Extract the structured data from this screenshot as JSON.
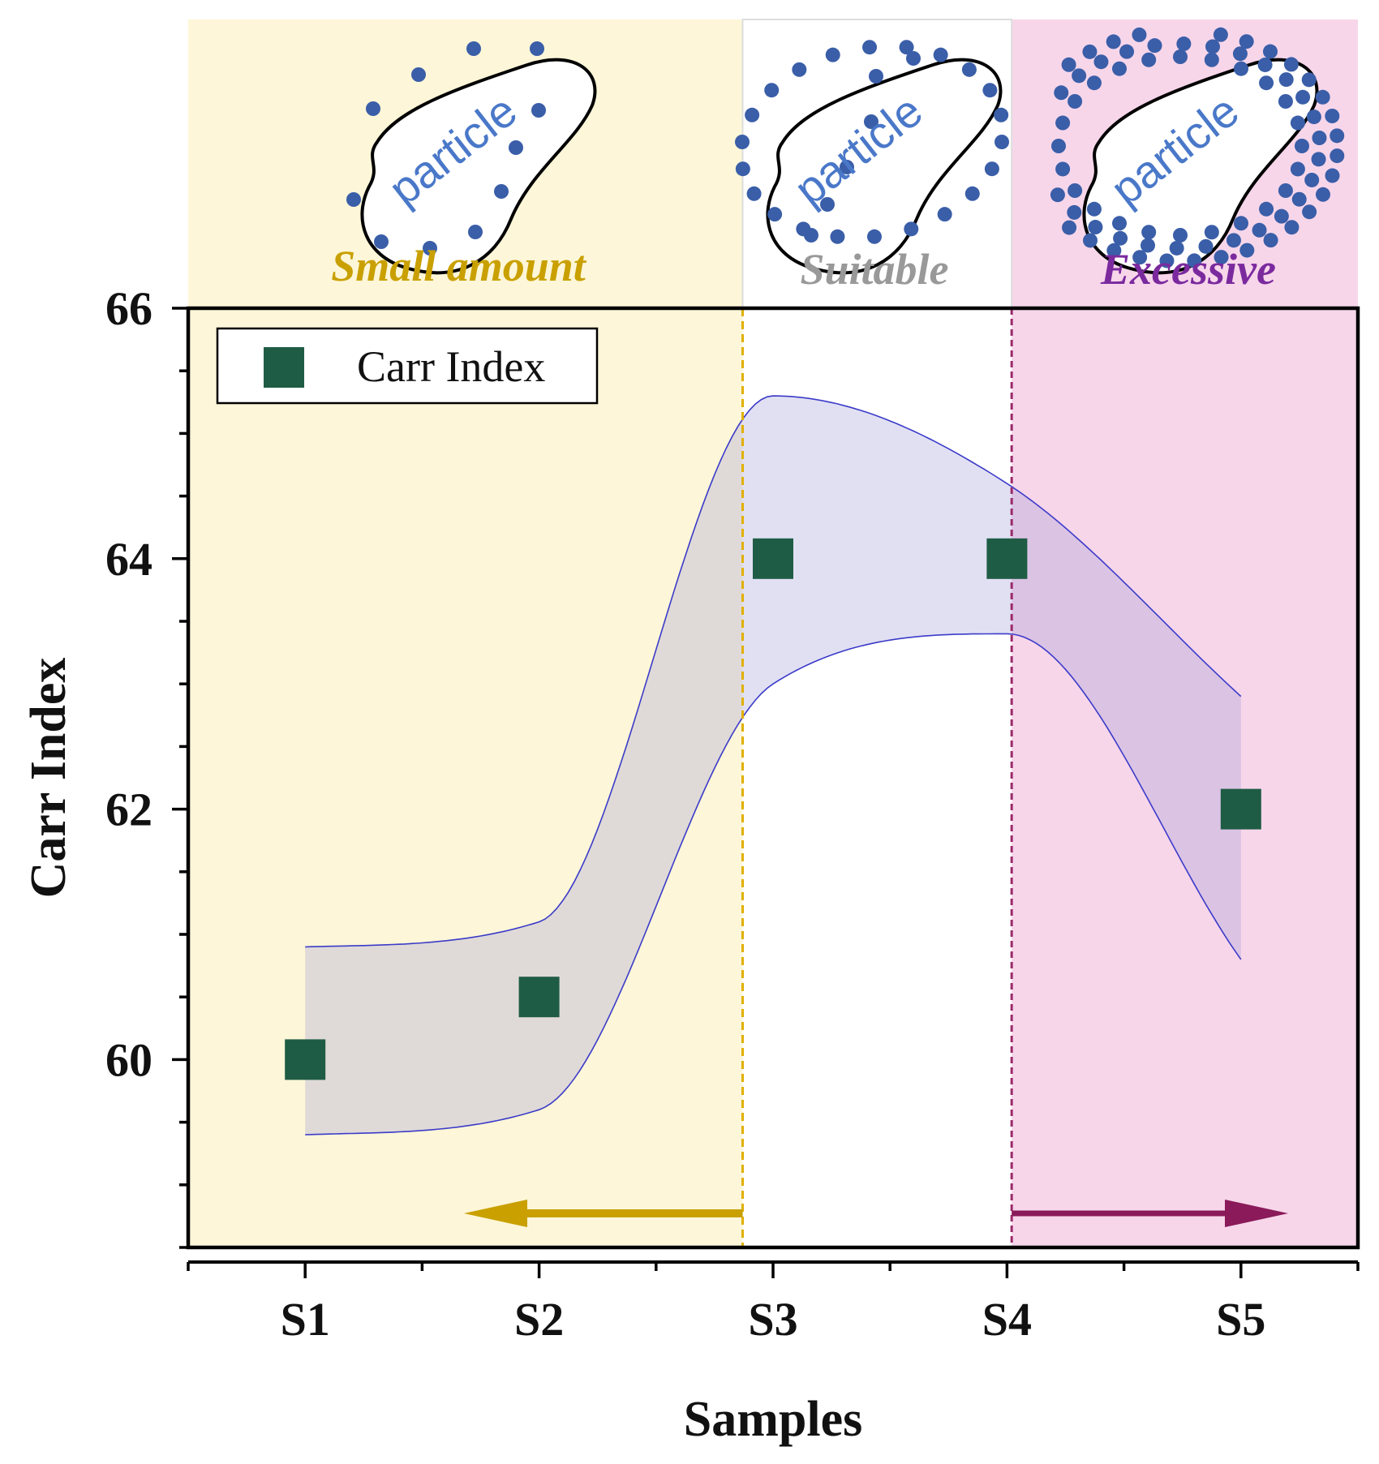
{
  "chart_data": {
    "type": "scatter",
    "title": "",
    "xlabel": "Samples",
    "ylabel": "Carr Index",
    "categories": [
      "S1",
      "S2",
      "S3",
      "S4",
      "S5"
    ],
    "series": [
      {
        "name": "Carr Index",
        "values": [
          60,
          60.5,
          64,
          64,
          62
        ]
      }
    ],
    "confidence_band": {
      "upper": [
        60.9,
        61.1,
        65.3,
        64.6,
        62.9
      ],
      "lower": [
        59.4,
        59.6,
        63.0,
        63.4,
        60.8
      ]
    },
    "ylim": [
      58.5,
      66
    ],
    "y_ticks": [
      60,
      62,
      64,
      66
    ],
    "xlim": [
      0.5,
      5.5
    ],
    "boundaries": [
      2.87,
      4.02
    ],
    "legend": {
      "label": "Carr Index",
      "position": "top-left"
    },
    "regions": [
      {
        "label": "Small amount",
        "particle_text": "particle",
        "color": "#c9a000",
        "fill": "#fdf6d8",
        "arrow": "left"
      },
      {
        "label": "Suitable",
        "particle_text": "particle",
        "color": "#999999",
        "fill": "#ffffff",
        "arrow": "none"
      },
      {
        "label": "Excessive",
        "particle_text": "particle",
        "color": "#7b2a9e",
        "fill": "#f7d6ea",
        "arrow": "right"
      }
    ],
    "colors": {
      "marker": "#1f5c45",
      "band_fill": "#9c97d6",
      "band_line": "#3b3bc9",
      "dot": "#3a5ea8",
      "particle_text": "#4a78c9",
      "small_line": "#e0b000",
      "small_arrow": "#c9a000",
      "excess_line": "#9b2a6a",
      "excess_arrow": "#8a1a5a"
    }
  }
}
